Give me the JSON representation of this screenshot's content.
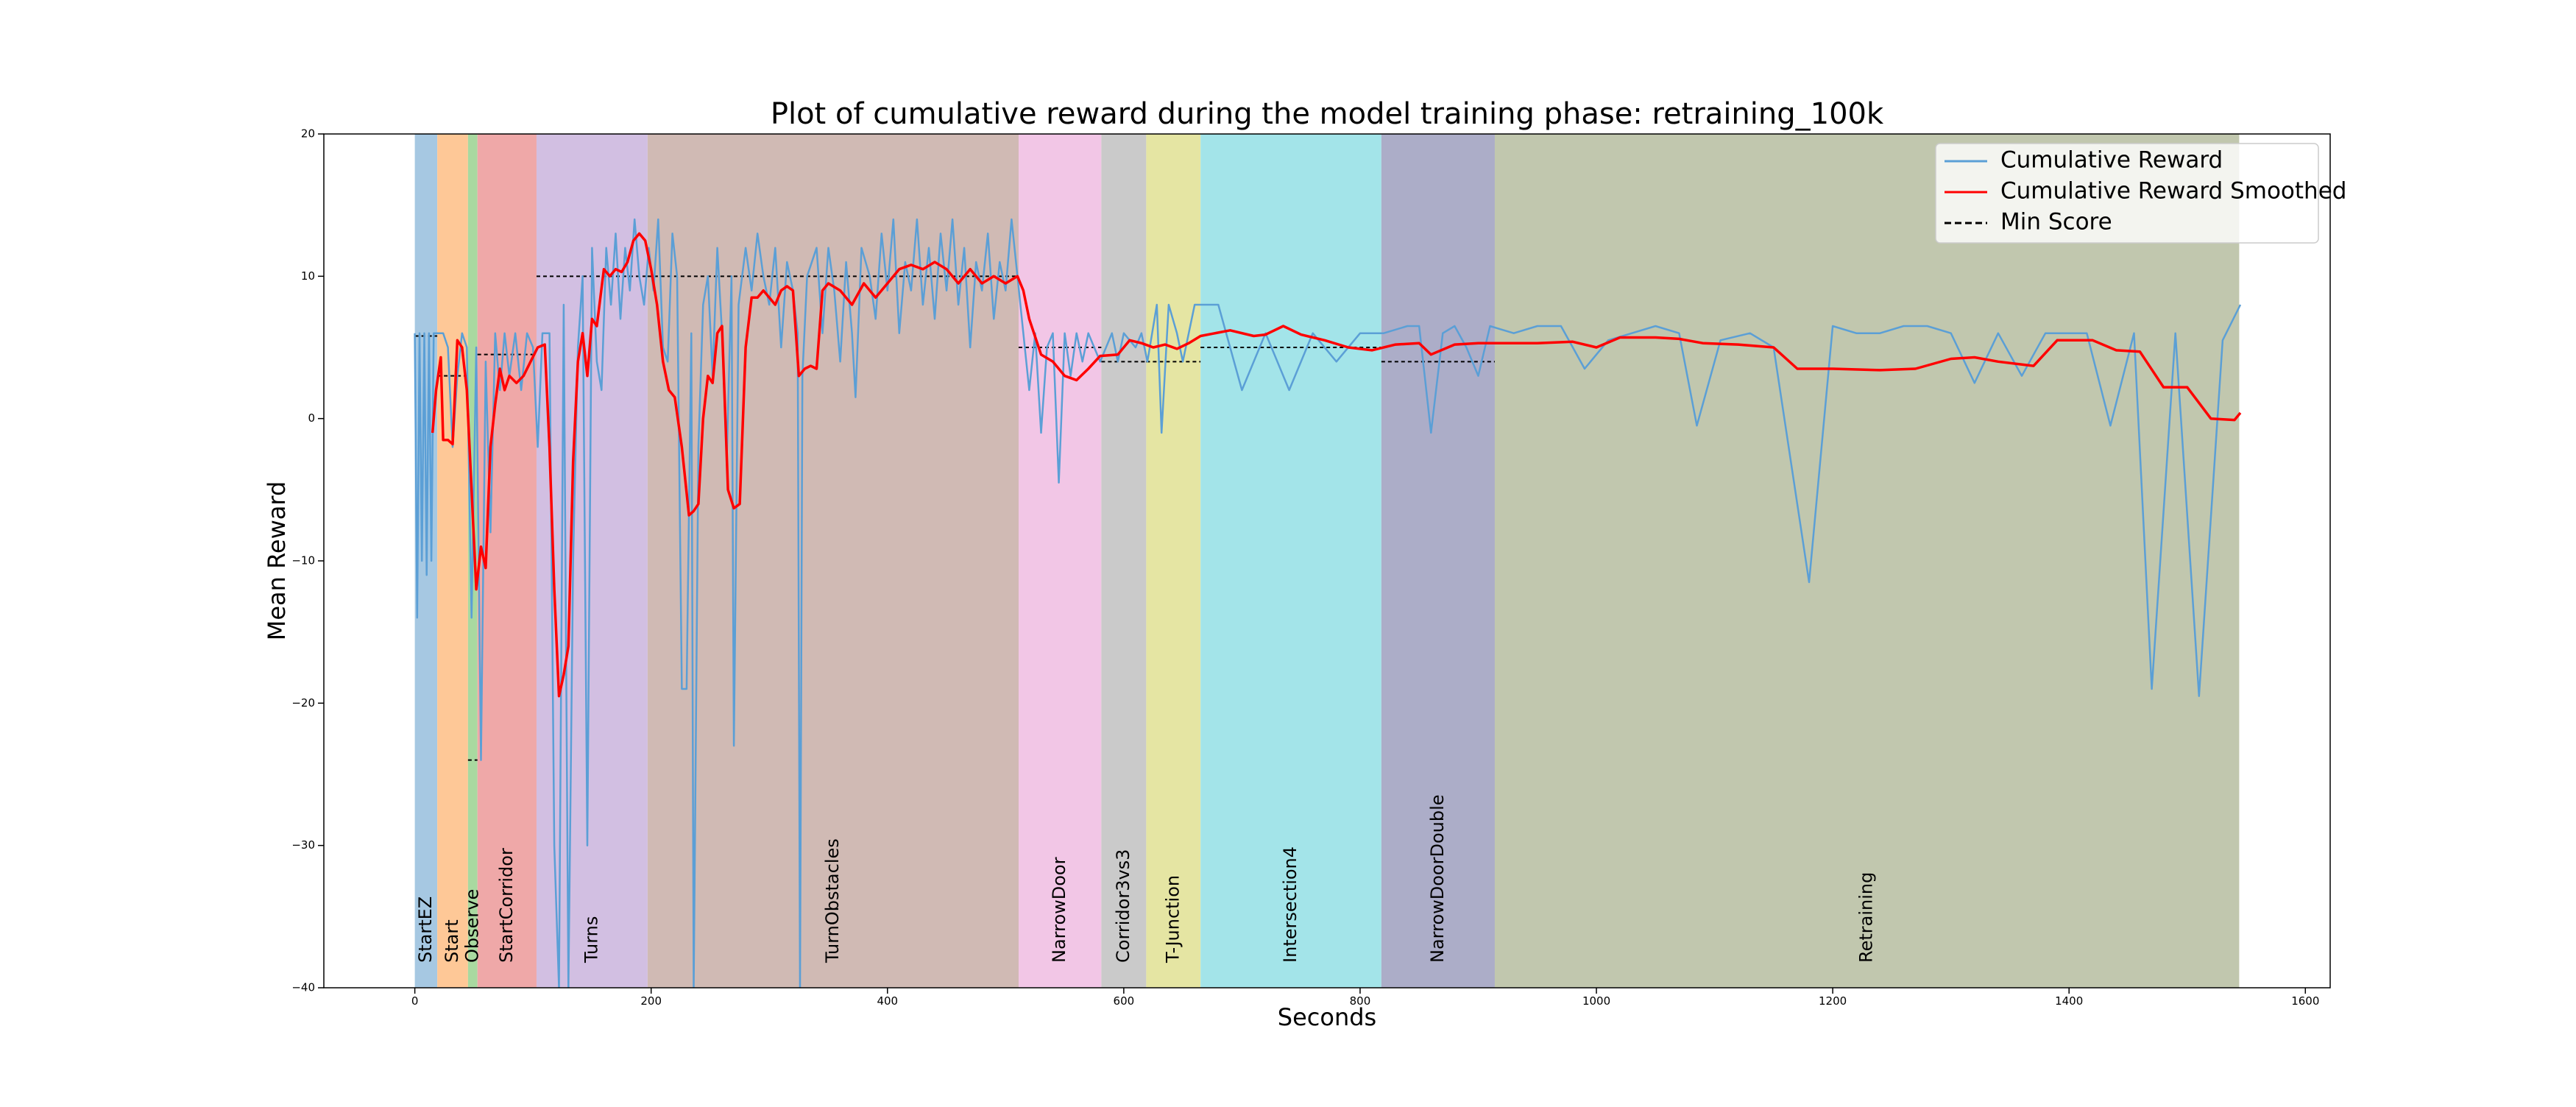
{
  "chart_data": {
    "type": "line",
    "title": "Plot of cumulative reward during the model training phase: retraining_100k",
    "x_label": "Seconds",
    "y_label": "Mean Reward",
    "xlim": [
      -77,
      1621
    ],
    "ylim": [
      -40,
      20
    ],
    "xticks": [
      0,
      200,
      400,
      600,
      800,
      1000,
      1200,
      1400,
      1600
    ],
    "yticks": [
      {
        "value": -40,
        "label": "−40"
      },
      {
        "value": -30,
        "label": "−30"
      },
      {
        "value": -20,
        "label": "−20"
      },
      {
        "value": -10,
        "label": "−10"
      },
      0,
      10,
      20
    ],
    "grid": false,
    "legend": "upper right",
    "phases": [
      {
        "name": "StartEZ",
        "start": 0,
        "end": 19,
        "color": "#a6c8e2",
        "min_score": 5.8
      },
      {
        "name": "Start",
        "start": 19,
        "end": 45,
        "color": "#fec897",
        "min_score": 3
      },
      {
        "name": "Observe",
        "start": 45,
        "end": 53,
        "color": "#a9d9a0",
        "min_score": -24
      },
      {
        "name": "StartCorridor",
        "start": 53,
        "end": 103,
        "color": "#efa8a8",
        "min_score": 4.5
      },
      {
        "name": "Turns",
        "start": 103,
        "end": 197,
        "color": "#d2bfe2",
        "min_score": 10
      },
      {
        "name": "TurnObstacles",
        "start": 197,
        "end": 511,
        "color": "#d0bab4",
        "min_score": 10
      },
      {
        "name": "NarrowDoor",
        "start": 511,
        "end": 581,
        "color": "#f2c6e6",
        "min_score": 5
      },
      {
        "name": "Corridor3vs3",
        "start": 581,
        "end": 619,
        "color": "#cacaca",
        "min_score": 4
      },
      {
        "name": "T-Junction",
        "start": 619,
        "end": 665,
        "color": "#e5e5a3",
        "min_score": 4
      },
      {
        "name": "Intersection4",
        "start": 665,
        "end": 818,
        "color": "#a3e4e9",
        "min_score": 5
      },
      {
        "name": "NarrowDoorDouble",
        "start": 818,
        "end": 914,
        "color": "#acadc8",
        "min_score": 4
      },
      {
        "name": "Retraining",
        "start": 914,
        "end": 1544,
        "color": "#c1c7ae",
        "min_score": null
      }
    ],
    "min_score": {
      "name": "Min Score",
      "color": "#000000"
    },
    "series": [
      {
        "name": "Cumulative Reward",
        "color": "#5b9fd6",
        "x": [
          0,
          2,
          4,
          6,
          8,
          10,
          12,
          14,
          16,
          20,
          24,
          28,
          32,
          36,
          40,
          44,
          48,
          52,
          56,
          60,
          64,
          68,
          72,
          76,
          80,
          85,
          90,
          95,
          100,
          104,
          108,
          114,
          118,
          122,
          126,
          130,
          134,
          138,
          142,
          146,
          150,
          154,
          158,
          162,
          166,
          170,
          174,
          178,
          182,
          186,
          190,
          194,
          198,
          202,
          206,
          210,
          214,
          218,
          222,
          226,
          230,
          234,
          236,
          240,
          244,
          248,
          252,
          256,
          260,
          264,
          268,
          270,
          274,
          280,
          285,
          290,
          295,
          300,
          305,
          310,
          315,
          320,
          324,
          326,
          328,
          332,
          340,
          345,
          350,
          355,
          360,
          365,
          370,
          373,
          378,
          385,
          390,
          395,
          400,
          405,
          410,
          415,
          420,
          425,
          430,
          435,
          440,
          445,
          450,
          455,
          460,
          465,
          470,
          475,
          480,
          485,
          490,
          495,
          500,
          505,
          510,
          515,
          520,
          525,
          530,
          535,
          540,
          545,
          550,
          555,
          560,
          565,
          570,
          575,
          580,
          590,
          595,
          600,
          610,
          615,
          620,
          628,
          632,
          638,
          645,
          650,
          660,
          670,
          680,
          700,
          720,
          740,
          760,
          780,
          800,
          820,
          840,
          850,
          860,
          870,
          880,
          890,
          900,
          910,
          930,
          950,
          970,
          990,
          1010,
          1030,
          1050,
          1070,
          1085,
          1105,
          1130,
          1150,
          1180,
          1200,
          1220,
          1240,
          1260,
          1280,
          1300,
          1320,
          1340,
          1360,
          1380,
          1400,
          1415,
          1435,
          1455,
          1470,
          1490,
          1510,
          1530,
          1545
        ],
        "values": [
          6,
          -14,
          6,
          -10,
          6,
          -11,
          6,
          -10,
          6,
          6,
          6,
          5,
          -2,
          3,
          6,
          5,
          -14,
          5,
          -24,
          4,
          -8,
          6,
          2,
          6,
          3,
          6,
          2,
          6,
          5,
          -2,
          6,
          6,
          -30,
          -40,
          8,
          -40,
          -10,
          5,
          10,
          -30,
          12,
          4,
          2,
          12,
          8,
          13,
          7,
          12,
          9,
          14,
          10,
          8,
          12,
          9,
          14,
          5,
          4,
          13,
          10,
          -19,
          -19,
          6,
          -40,
          -2,
          8,
          10,
          3,
          12,
          6,
          -3,
          10,
          -23,
          8,
          12,
          9,
          13,
          10,
          8,
          12,
          5,
          11,
          9,
          6,
          -40,
          3,
          10,
          12,
          6,
          12,
          9,
          4,
          11,
          6,
          1.5,
          12,
          10,
          7,
          13,
          9,
          14,
          6,
          11,
          9,
          14,
          8,
          12,
          7,
          13,
          9,
          14,
          8,
          12,
          5,
          11,
          9,
          13,
          7,
          11,
          9,
          14,
          10,
          6,
          2,
          6,
          -1,
          5,
          6,
          -4.5,
          6,
          3,
          6,
          4,
          6,
          5,
          4,
          6,
          4,
          6,
          5,
          6,
          4,
          8,
          -1,
          8,
          6,
          4,
          8,
          8,
          8,
          2,
          6,
          2,
          6,
          4,
          6,
          6,
          6.5,
          6.5,
          -1,
          6,
          6.5,
          5,
          3,
          6.5,
          6,
          6.5,
          6.5,
          3.5,
          5.5,
          6,
          6.5,
          6,
          -0.5,
          5.5,
          6,
          5,
          -11.5,
          6.5,
          6,
          6,
          6.5,
          6.5,
          6,
          2.5,
          6,
          3,
          6,
          6,
          6,
          -0.5,
          6,
          -19,
          6,
          -19.5,
          5.5,
          8
        ]
      },
      {
        "name": "Cumulative Reward Smoothed",
        "color": "#ff0000",
        "x": [
          15,
          18,
          22,
          24,
          28,
          32,
          36,
          40,
          44,
          48,
          52,
          56,
          60,
          64,
          68,
          72,
          76,
          80,
          86,
          92,
          98,
          104,
          110,
          114,
          118,
          122,
          126,
          130,
          134,
          138,
          142,
          146,
          150,
          154,
          160,
          165,
          170,
          175,
          180,
          185,
          190,
          195,
          200,
          205,
          210,
          215,
          220,
          226,
          232,
          236,
          240,
          244,
          248,
          252,
          256,
          260,
          265,
          270,
          275,
          280,
          285,
          290,
          295,
          300,
          305,
          310,
          315,
          320,
          325,
          330,
          335,
          340,
          345,
          350,
          360,
          370,
          380,
          390,
          400,
          410,
          420,
          430,
          440,
          450,
          460,
          470,
          480,
          490,
          500,
          510,
          515,
          520,
          530,
          540,
          550,
          560,
          570,
          580,
          595,
          605,
          615,
          625,
          635,
          645,
          655,
          665,
          690,
          710,
          720,
          735,
          750,
          770,
          790,
          810,
          830,
          850,
          860,
          880,
          900,
          920,
          950,
          980,
          1000,
          1020,
          1050,
          1070,
          1090,
          1120,
          1150,
          1170,
          1200,
          1240,
          1270,
          1300,
          1320,
          1340,
          1370,
          1390,
          1420,
          1440,
          1460,
          1480,
          1500,
          1520,
          1540,
          1545
        ],
        "values": [
          -1,
          2,
          4.3,
          -1.5,
          -1.5,
          -1.8,
          5.5,
          5,
          2,
          -5,
          -12,
          -9,
          -10.5,
          -2,
          1,
          3.5,
          2,
          3,
          2.5,
          3,
          4,
          5,
          5.2,
          -2,
          -12,
          -19.5,
          -18,
          -16,
          -3,
          4,
          6,
          3,
          7,
          6.5,
          10.5,
          10,
          10.5,
          10.3,
          11,
          12.5,
          13,
          12.5,
          10.5,
          8,
          4,
          2,
          1.5,
          -2,
          -6.8,
          -6.5,
          -6,
          0,
          3,
          2.5,
          6,
          6.5,
          -5,
          -6.3,
          -6,
          5,
          8.5,
          8.5,
          9,
          8.5,
          8,
          9,
          9.3,
          9,
          3,
          3.5,
          3.7,
          3.5,
          9,
          9.5,
          9,
          8,
          9.5,
          8.5,
          9.5,
          10.5,
          10.8,
          10.5,
          11,
          10.5,
          9.5,
          10.5,
          9.5,
          10,
          9.5,
          10,
          9,
          7,
          4.5,
          4,
          3,
          2.7,
          3.5,
          4.4,
          4.5,
          5.5,
          5.3,
          5,
          5.2,
          4.9,
          5.3,
          5.8,
          6.2,
          5.8,
          5.9,
          6.5,
          5.9,
          5.5,
          5,
          4.8,
          5.2,
          5.3,
          4.5,
          5.2,
          5.3,
          5.3,
          5.3,
          5.4,
          5,
          5.7,
          5.7,
          5.6,
          5.3,
          5.2,
          5,
          3.5,
          3.5,
          3.4,
          3.5,
          4.2,
          4.3,
          4,
          3.7,
          5.5,
          5.5,
          4.8,
          4.7,
          2.2,
          2.2,
          0,
          -0.1,
          0.4
        ]
      }
    ]
  }
}
